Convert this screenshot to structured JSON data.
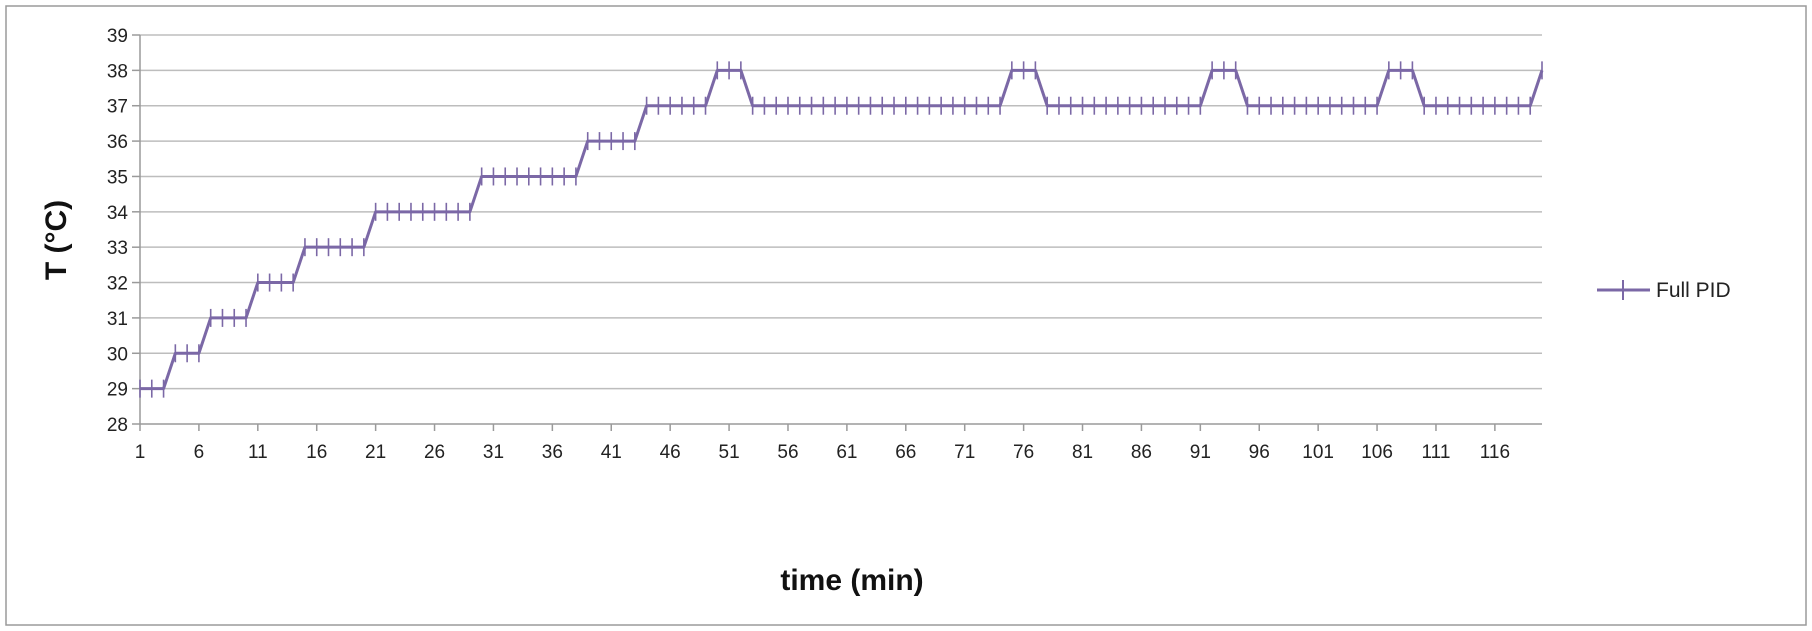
{
  "chart_data": {
    "type": "line",
    "title": "",
    "xlabel": "time (min)",
    "ylabel": "T (°C)",
    "ylim": [
      28,
      39
    ],
    "yticks": [
      28,
      29,
      30,
      31,
      32,
      33,
      34,
      35,
      36,
      37,
      38,
      39
    ],
    "xlim": [
      1,
      120
    ],
    "xtick_labels": [
      "1",
      "6",
      "11",
      "16",
      "21",
      "26",
      "31",
      "36",
      "41",
      "46",
      "51",
      "56",
      "61",
      "66",
      "71",
      "76",
      "81",
      "86",
      "91",
      "96",
      "101",
      "106",
      "111",
      "116"
    ],
    "grid": "horizontal",
    "legend_position": "right",
    "colors": {
      "series": "#7b68a6",
      "grid": "#bdbdbd",
      "axis": "#9a9a9a",
      "frame": "#9a9a9a"
    },
    "series": [
      {
        "name": "Full PID",
        "marker": "plus",
        "x": [
          1,
          2,
          3,
          4,
          5,
          6,
          7,
          8,
          9,
          10,
          11,
          12,
          13,
          14,
          15,
          16,
          17,
          18,
          19,
          20,
          21,
          22,
          23,
          24,
          25,
          26,
          27,
          28,
          29,
          30,
          31,
          32,
          33,
          34,
          35,
          36,
          37,
          38,
          39,
          40,
          41,
          42,
          43,
          44,
          45,
          46,
          47,
          48,
          49,
          50,
          51,
          52,
          53,
          54,
          55,
          56,
          57,
          58,
          59,
          60,
          61,
          62,
          63,
          64,
          65,
          66,
          67,
          68,
          69,
          70,
          71,
          72,
          73,
          74,
          75,
          76,
          77,
          78,
          79,
          80,
          81,
          82,
          83,
          84,
          85,
          86,
          87,
          88,
          89,
          90,
          91,
          92,
          93,
          94,
          95,
          96,
          97,
          98,
          99,
          100,
          101,
          102,
          103,
          104,
          105,
          106,
          107,
          108,
          109,
          110,
          111,
          112,
          113,
          114,
          115,
          116,
          117,
          118,
          119,
          120
        ],
        "y": [
          29,
          29,
          29,
          30,
          30,
          30,
          31,
          31,
          31,
          31,
          32,
          32,
          32,
          32,
          33,
          33,
          33,
          33,
          33,
          33,
          34,
          34,
          34,
          34,
          34,
          34,
          34,
          34,
          34,
          35,
          35,
          35,
          35,
          35,
          35,
          35,
          35,
          35,
          36,
          36,
          36,
          36,
          36,
          37,
          37,
          37,
          37,
          37,
          37,
          38,
          38,
          38,
          37,
          37,
          37,
          37,
          37,
          37,
          37,
          37,
          37,
          37,
          37,
          37,
          37,
          37,
          37,
          37,
          37,
          37,
          37,
          37,
          37,
          37,
          38,
          38,
          38,
          37,
          37,
          37,
          37,
          37,
          37,
          37,
          37,
          37,
          37,
          37,
          37,
          37,
          37,
          38,
          38,
          38,
          37,
          37,
          37,
          37,
          37,
          37,
          37,
          37,
          37,
          37,
          37,
          37,
          38,
          38,
          38,
          37,
          37,
          37,
          37,
          37,
          37,
          37,
          37,
          37,
          37,
          38
        ]
      }
    ]
  }
}
